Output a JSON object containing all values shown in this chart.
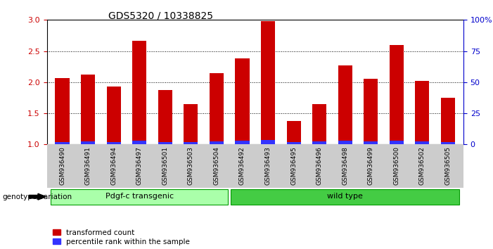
{
  "title": "GDS5320 / 10338825",
  "samples": [
    "GSM936490",
    "GSM936491",
    "GSM936494",
    "GSM936497",
    "GSM936501",
    "GSM936503",
    "GSM936504",
    "GSM936492",
    "GSM936493",
    "GSM936495",
    "GSM936496",
    "GSM936498",
    "GSM936499",
    "GSM936500",
    "GSM936502",
    "GSM936505"
  ],
  "transformed_count": [
    2.07,
    2.12,
    1.93,
    2.67,
    1.87,
    1.65,
    2.15,
    2.38,
    2.98,
    1.38,
    1.65,
    2.27,
    2.05,
    2.6,
    2.02,
    1.75
  ],
  "percentile_rank": [
    0.04,
    0.05,
    0.04,
    0.06,
    0.04,
    0.04,
    0.05,
    0.06,
    0.07,
    0.04,
    0.05,
    0.06,
    0.05,
    0.06,
    0.05,
    0.04
  ],
  "bar_color_red": "#cc0000",
  "bar_color_blue": "#3333ff",
  "group1_label": "Pdgf-c transgenic",
  "group2_label": "wild type",
  "group1_count": 7,
  "group2_count": 9,
  "group1_color": "#aaffaa",
  "group2_color": "#44cc44",
  "genotype_label": "genotype/variation",
  "legend1": "transformed count",
  "legend2": "percentile rank within the sample",
  "ylim_left": [
    1.0,
    3.0
  ],
  "ylim_right": [
    0,
    100
  ],
  "yticks_left": [
    1.0,
    1.5,
    2.0,
    2.5,
    3.0
  ],
  "yticks_right": [
    0,
    25,
    50,
    75,
    100
  ],
  "ytick_labels_right": [
    "0",
    "25",
    "50",
    "75",
    "100%"
  ],
  "background_color": "#ffffff",
  "tick_label_area_color": "#cccccc"
}
